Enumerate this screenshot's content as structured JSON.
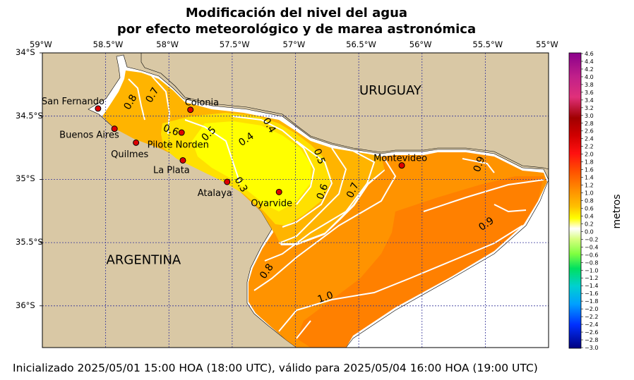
{
  "title": {
    "line1": "Modificación del nivel del agua",
    "line2": "por efecto meteorológico y de marea astronómica"
  },
  "footer": "Inicializado 2025/05/01 15:00 HOA (18:00 UTC), válido para 2025/05/04 16:00 HOA (19:00 UTC)",
  "map": {
    "lon_range": [
      -59,
      -55
    ],
    "lat_range": [
      -36.33,
      -34
    ],
    "lon_ticks": [
      {
        "value": -59,
        "label": "59°W"
      },
      {
        "value": -58.5,
        "label": "58.5°W"
      },
      {
        "value": -58,
        "label": "58°W"
      },
      {
        "value": -57.5,
        "label": "57.5°W"
      },
      {
        "value": -57,
        "label": "57°W"
      },
      {
        "value": -56.5,
        "label": "56.5°W"
      },
      {
        "value": -56,
        "label": "56°W"
      },
      {
        "value": -55.5,
        "label": "55.5°W"
      },
      {
        "value": -55,
        "label": "55°W"
      }
    ],
    "lat_ticks": [
      {
        "value": -34,
        "label": "34°S"
      },
      {
        "value": -34.5,
        "label": "34.5°S"
      },
      {
        "value": -35,
        "label": "35°S"
      },
      {
        "value": -35.5,
        "label": "35.5°S"
      },
      {
        "value": -36,
        "label": "36°S"
      }
    ],
    "countries": [
      {
        "name": "URUGUAY",
        "lon": -56.25,
        "lat": -34.33
      },
      {
        "name": "ARGENTINA",
        "lon": -58.2,
        "lat": -35.67
      }
    ],
    "stations": [
      {
        "name": "San Fernando",
        "lon": -58.56,
        "lat": -34.44
      },
      {
        "name": "Buenos Aires",
        "lon": -58.43,
        "lat": -34.6
      },
      {
        "name": "Pilote Norden",
        "lon": -58.26,
        "lat": -34.71
      },
      {
        "name": "Colonia",
        "lon": -57.83,
        "lat": -34.45
      },
      {
        "name": "Quilmes",
        "lon": -57.9,
        "lat": -34.63
      },
      {
        "name": "La Plata",
        "lon": -57.89,
        "lat": -34.85
      },
      {
        "name": "Atalaya",
        "lon": -57.54,
        "lat": -35.02
      },
      {
        "name": "Oyarvide",
        "lon": -57.13,
        "lat": -35.1
      },
      {
        "name": "Montevideo",
        "lon": -56.16,
        "lat": -34.89
      }
    ],
    "contour_labels": [
      "0.8",
      "0.7",
      "0.6",
      "0.5",
      "0.4",
      "0.4",
      "0.3",
      "0.5",
      "0.6",
      "0.7",
      "0.9",
      "0.9",
      "0.8",
      "1.0"
    ],
    "colors": {
      "land": "#d9c8a5",
      "water_06": "#ffb400",
      "water_04": "#ffe000",
      "water_02": "#ffff00",
      "water_08": "#ff9300",
      "water_10": "#ff8000"
    }
  },
  "colorbar": {
    "unit": "metros",
    "ticks": [
      "4.6",
      "4.4",
      "4.2",
      "4.0",
      "3.8",
      "3.6",
      "3.4",
      "3.2",
      "3.0",
      "2.8",
      "2.6",
      "2.4",
      "2.2",
      "2.0",
      "1.8",
      "1.6",
      "1.4",
      "1.2",
      "1.0",
      "0.8",
      "0.6",
      "0.4",
      "0.2",
      "0.0",
      "−0.2",
      "−0.4",
      "−0.6",
      "−0.8",
      "−1.0",
      "−1.2",
      "−1.4",
      "−1.6",
      "−1.8",
      "−2.0",
      "−2.2",
      "−2.4",
      "−2.6",
      "−2.8",
      "−3.0"
    ]
  }
}
